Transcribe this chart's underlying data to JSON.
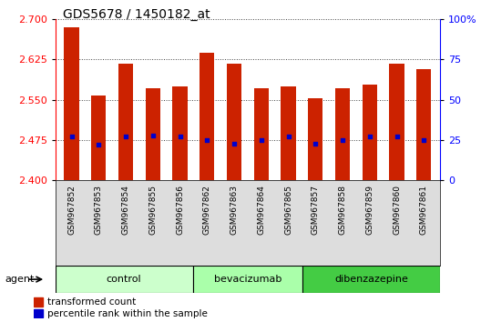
{
  "title": "GDS5678 / 1450182_at",
  "samples": [
    "GSM967852",
    "GSM967853",
    "GSM967854",
    "GSM967855",
    "GSM967856",
    "GSM967862",
    "GSM967863",
    "GSM967864",
    "GSM967865",
    "GSM967857",
    "GSM967858",
    "GSM967859",
    "GSM967860",
    "GSM967861"
  ],
  "transformed_count": [
    2.685,
    2.558,
    2.617,
    2.572,
    2.575,
    2.638,
    2.617,
    2.572,
    2.575,
    2.553,
    2.572,
    2.578,
    2.617,
    2.608
  ],
  "percentile_rank": [
    27,
    22,
    27,
    28,
    27,
    25,
    23,
    25,
    27,
    23,
    25,
    27,
    27,
    25
  ],
  "groups": [
    {
      "label": "control",
      "start": 0,
      "end": 5,
      "color": "#ccffcc"
    },
    {
      "label": "bevacizumab",
      "start": 5,
      "end": 9,
      "color": "#aaffaa"
    },
    {
      "label": "dibenzazepine",
      "start": 9,
      "end": 14,
      "color": "#44cc44"
    }
  ],
  "ylim_left": [
    2.4,
    2.7
  ],
  "ylim_right": [
    0,
    100
  ],
  "yticks_left": [
    2.4,
    2.475,
    2.55,
    2.625,
    2.7
  ],
  "yticks_right": [
    0,
    25,
    50,
    75,
    100
  ],
  "bar_color": "#cc2200",
  "dot_color": "#0000cc",
  "grid_color": "#444444",
  "tick_bg_color": "#dddddd",
  "background_color": "#ffffff",
  "legend_tc": "transformed count",
  "legend_pr": "percentile rank within the sample",
  "bar_width": 0.55
}
